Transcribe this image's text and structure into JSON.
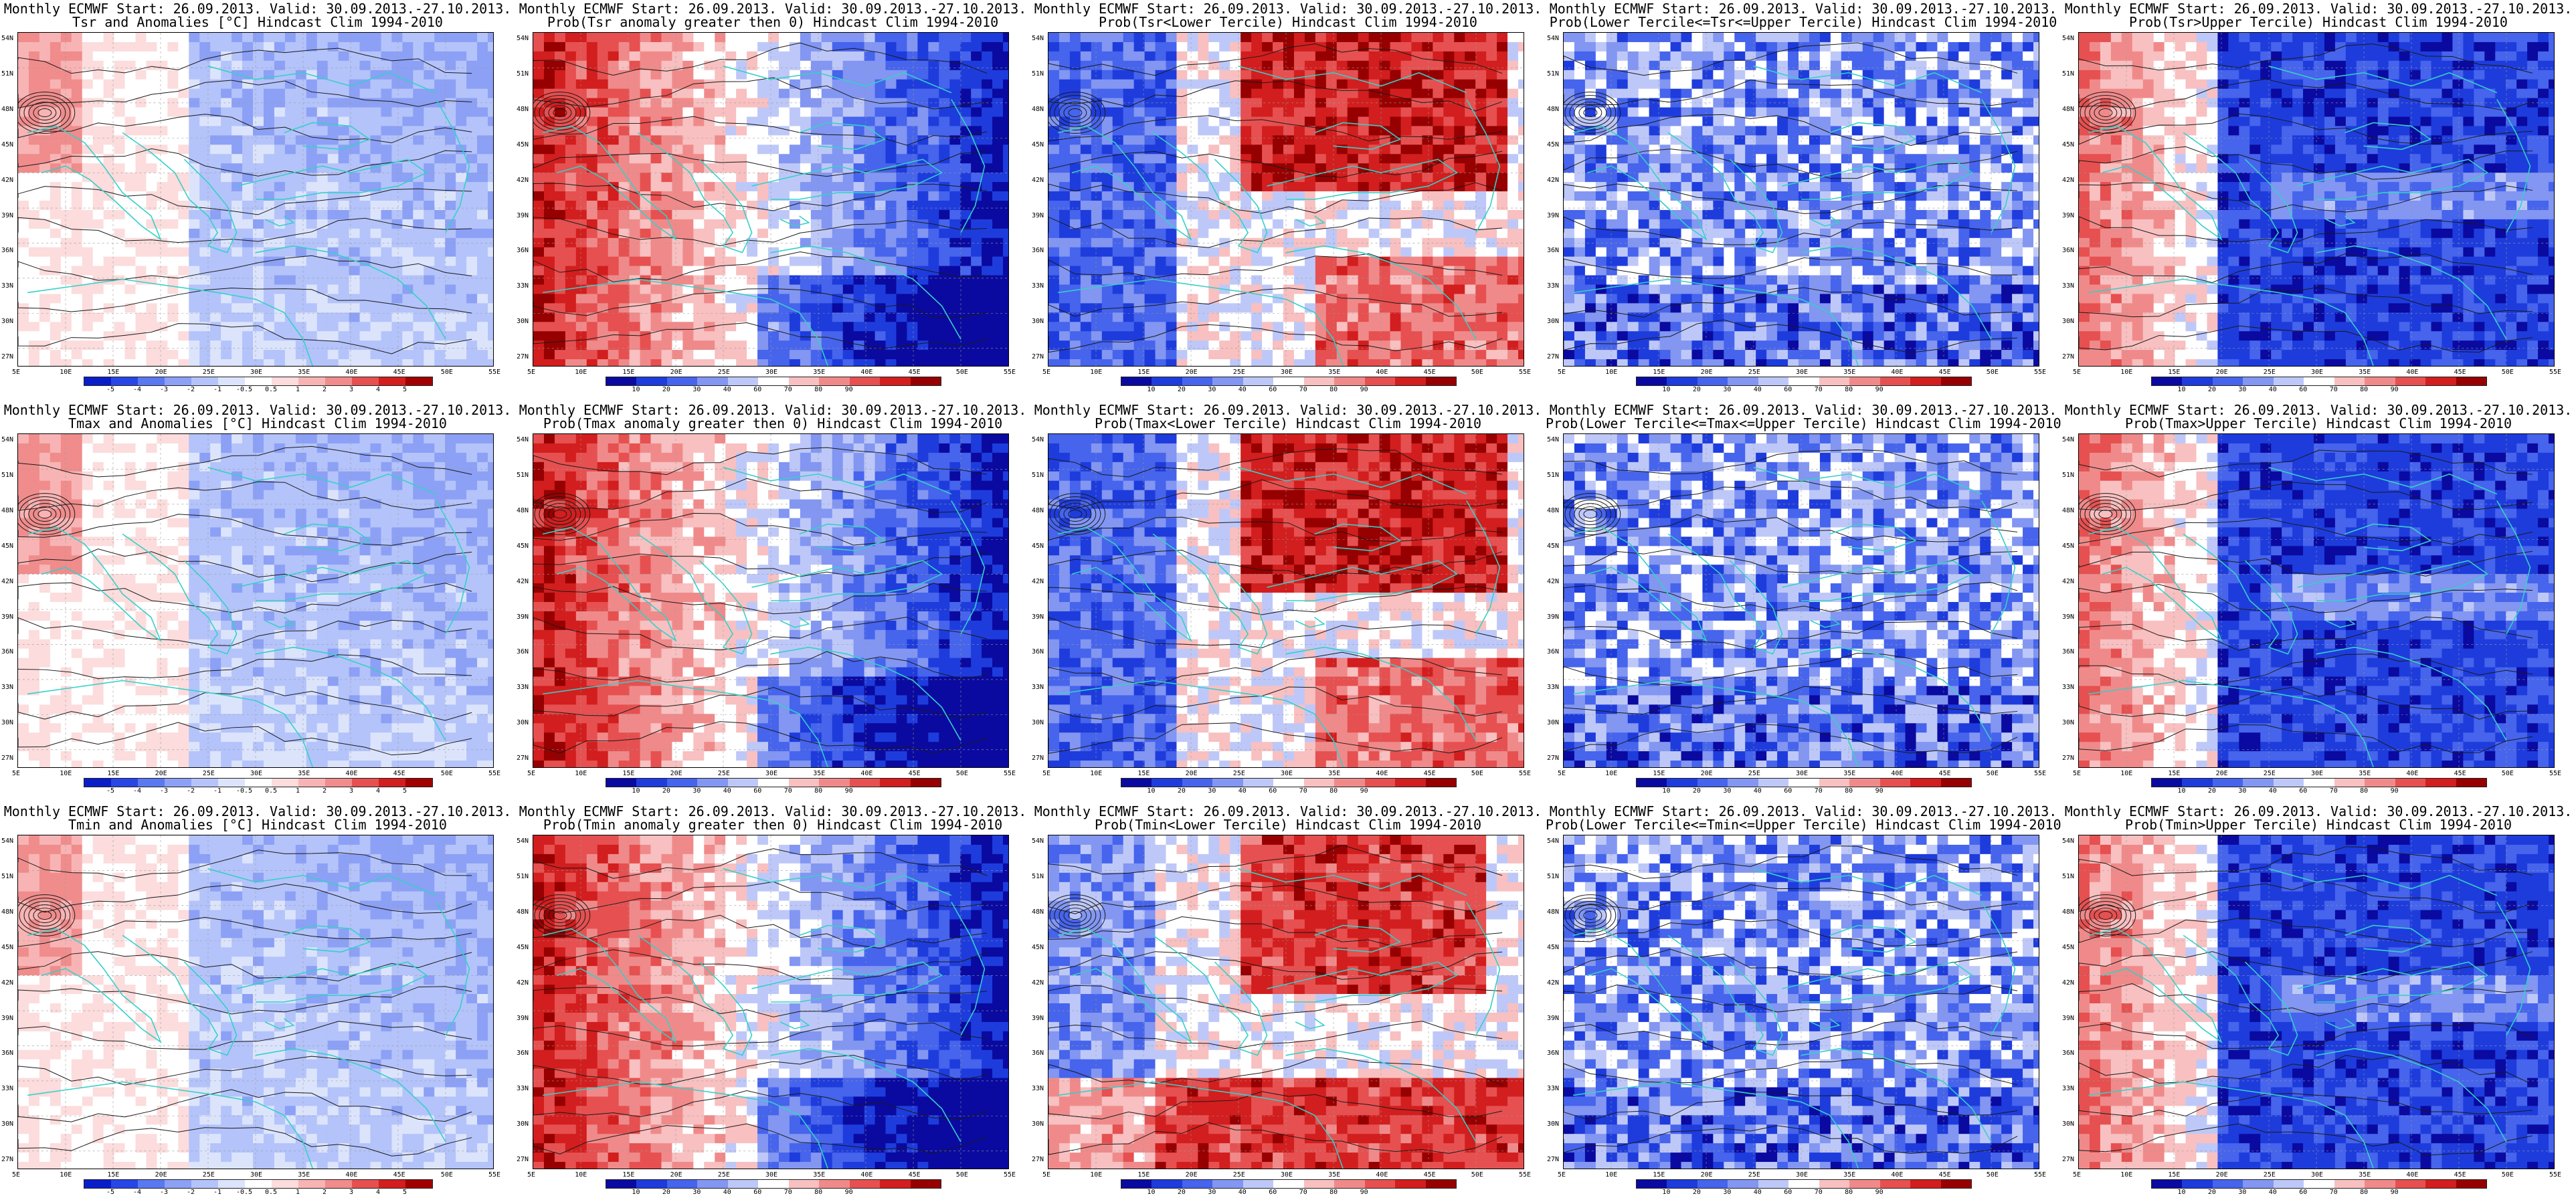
{
  "panels": [
    {
      "id": "tsr-anom",
      "line1": "Monthly ECMWF Start: 26.09.2013. Valid: 30.09.2013.-27.10.2013.",
      "line2": "Tsr and Anomalies [°C] Hindcast Clim 1994-2010",
      "scale": "anom",
      "palette": "mildblue"
    },
    {
      "id": "tsr-pgt0",
      "line1": "Monthly ECMWF Start: 26.09.2013. Valid: 30.09.2013.-27.10.2013.",
      "line2": "Prob(Tsr anomaly greater then 0) Hindcast Clim 1994-2010",
      "scale": "prob",
      "palette": "redwest"
    },
    {
      "id": "tsr-lower",
      "line1": "Monthly ECMWF Start: 26.09.2013. Valid: 30.09.2013.-27.10.2013.",
      "line2": "Prob(Tsr<Lower Tercile) Hindcast Clim 1994-2010",
      "scale": "prob",
      "palette": "rednorth"
    },
    {
      "id": "tsr-middle",
      "line1": "Monthly ECMWF Start: 26.09.2013. Valid: 30.09.2013.-27.10.2013.",
      "line2": "Prob(Lower Tercile<=Tsr<=Upper Tercile) Hindcast Clim 1994-2010",
      "scale": "prob",
      "palette": "bluepatchy"
    },
    {
      "id": "tsr-upper",
      "line1": "Monthly ECMWF Start: 26.09.2013. Valid: 30.09.2013.-27.10.2013.",
      "line2": "Prob(Tsr>Upper Tercile) Hindcast Clim 1994-2010",
      "scale": "prob",
      "palette": "bluedeep"
    },
    {
      "id": "tmax-anom",
      "line1": "Monthly ECMWF Start: 26.09.2013. Valid: 30.09.2013.-27.10.2013.",
      "line2": "Tmax and Anomalies [°C] Hindcast Clim 1994-2010",
      "scale": "anom",
      "palette": "mildblue"
    },
    {
      "id": "tmax-pgt0",
      "line1": "Monthly ECMWF Start: 26.09.2013. Valid: 30.09.2013.-27.10.2013.",
      "line2": "Prob(Tmax anomaly greater then 0) Hindcast Clim 1994-2010",
      "scale": "prob",
      "palette": "redwest"
    },
    {
      "id": "tmax-lower",
      "line1": "Monthly ECMWF Start: 26.09.2013. Valid: 30.09.2013.-27.10.2013.",
      "line2": "Prob(Tmax<Lower Tercile) Hindcast Clim 1994-2010",
      "scale": "prob",
      "palette": "rednorth"
    },
    {
      "id": "tmax-middle",
      "line1": "Monthly ECMWF Start: 26.09.2013. Valid: 30.09.2013.-27.10.2013.",
      "line2": "Prob(Lower Tercile<=Tmax<=Upper Tercile) Hindcast Clim 1994-2010",
      "scale": "prob",
      "palette": "bluepatchy"
    },
    {
      "id": "tmax-upper",
      "line1": "Monthly ECMWF Start: 26.09.2013. Valid: 30.09.2013.-27.10.2013.",
      "line2": "Prob(Tmax>Upper Tercile) Hindcast Clim 1994-2010",
      "scale": "prob",
      "palette": "bluedeep"
    },
    {
      "id": "tmin-anom",
      "line1": "Monthly ECMWF Start: 26.09.2013. Valid: 30.09.2013.-27.10.2013.",
      "line2": "Tmin and Anomalies [°C] Hindcast Clim 1994-2010",
      "scale": "anom",
      "palette": "mildblue"
    },
    {
      "id": "tmin-pgt0",
      "line1": "Monthly ECMWF Start: 26.09.2013. Valid: 30.09.2013.-27.10.2013.",
      "line2": "Prob(Tmin anomaly greater then 0) Hindcast Clim 1994-2010",
      "scale": "prob",
      "palette": "redwest"
    },
    {
      "id": "tmin-lower",
      "line1": "Monthly ECMWF Start: 26.09.2013. Valid: 30.09.2013.-27.10.2013.",
      "line2": "Prob(Tmin<Lower Tercile) Hindcast Clim 1994-2010",
      "scale": "prob",
      "palette": "rednorthsouth"
    },
    {
      "id": "tmin-middle",
      "line1": "Monthly ECMWF Start: 26.09.2013. Valid: 30.09.2013.-27.10.2013.",
      "line2": "Prob(Lower Tercile<=Tmin<=Upper Tercile) Hindcast Clim 1994-2010",
      "scale": "prob",
      "palette": "bluepatchy"
    },
    {
      "id": "tmin-upper",
      "line1": "Monthly ECMWF Start: 26.09.2013. Valid: 30.09.2013.-27.10.2013.",
      "line2": "Prob(Tmin>Upper Tercile) Hindcast Clim 1994-2010",
      "scale": "prob",
      "palette": "bluedeep"
    }
  ],
  "lat_labels": [
    "54N",
    "51N",
    "48N",
    "45N",
    "42N",
    "39N",
    "36N",
    "33N",
    "30N",
    "27N"
  ],
  "lon_labels": [
    "5E",
    "10E",
    "15E",
    "20E",
    "25E",
    "30E",
    "35E",
    "40E",
    "45E",
    "50E",
    "55E"
  ],
  "anom_ticks": [
    "-5",
    "-4",
    "-3",
    "-2",
    "-1",
    "-0.5",
    "0.5",
    "1",
    "2",
    "3",
    "4",
    "5"
  ],
  "prob_ticks": [
    "10",
    "20",
    "30",
    "40",
    "60",
    "70",
    "80",
    "90"
  ],
  "anom_colors": [
    "#0a1ec8",
    "#2846e6",
    "#5a78f0",
    "#8ca0f5",
    "#b4c3fa",
    "#dce4fc",
    "#ffffff",
    "#fcdcdc",
    "#f8b4b4",
    "#f08c8c",
    "#e65050",
    "#d21e1e",
    "#a00000"
  ],
  "prob_colors": [
    "#0a0aa0",
    "#1e3cdc",
    "#4664ec",
    "#8296f2",
    "#bec8f8",
    "#ffffff",
    "#f8c0c0",
    "#f08a8a",
    "#e65050",
    "#d21e1e",
    "#960000"
  ],
  "colors": {
    "coast": "#35d0c8",
    "contour": "#1a1a1a",
    "grid": "#9a9a9a"
  }
}
